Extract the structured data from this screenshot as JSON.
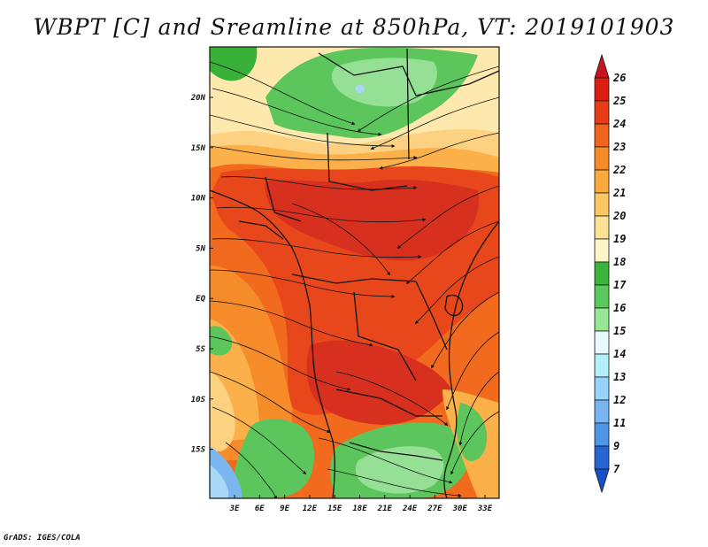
{
  "title": "WBPT [C] and Sreamline at 850hPa, VT: 2019101903",
  "credit": "GrADS: IGES/COLA",
  "lon_labels": [
    "3E",
    "6E",
    "9E",
    "12E",
    "15E",
    "18E",
    "21E",
    "24E",
    "27E",
    "30E",
    "33E"
  ],
  "lat_labels": [
    "20N",
    "15N",
    "10N",
    "5N",
    "EQ",
    "5S",
    "10S",
    "15S"
  ],
  "colorbar": {
    "labels": [
      "26",
      "25",
      "24",
      "23",
      "22",
      "21",
      "20",
      "19",
      "18",
      "17",
      "16",
      "15",
      "14",
      "13",
      "12",
      "11",
      "9",
      "7"
    ],
    "colors": [
      "#c8141e",
      "#dc1e14",
      "#e63c18",
      "#f0641e",
      "#f58c28",
      "#faaa3c",
      "#fcc864",
      "#fae196",
      "#fff5c8",
      "#3cb43c",
      "#5ac85a",
      "#96e696",
      "#e6faff",
      "#b4f0fa",
      "#96d2fa",
      "#78b4f0",
      "#5096e6",
      "#2864d2",
      "#1450c8"
    ]
  },
  "map_colors": {
    "hot_dark": "#d7301f",
    "hot": "#e8471c",
    "warm": "#f26a1d",
    "orange": "#f68b2a",
    "light_orange": "#fbb04a",
    "yellow": "#fcd282",
    "pale": "#fde9ad",
    "green_dark": "#37b137",
    "green": "#5cc65c",
    "green_light": "#96e096",
    "blue_light": "#a8d8f5",
    "blue": "#7cb6ee"
  }
}
